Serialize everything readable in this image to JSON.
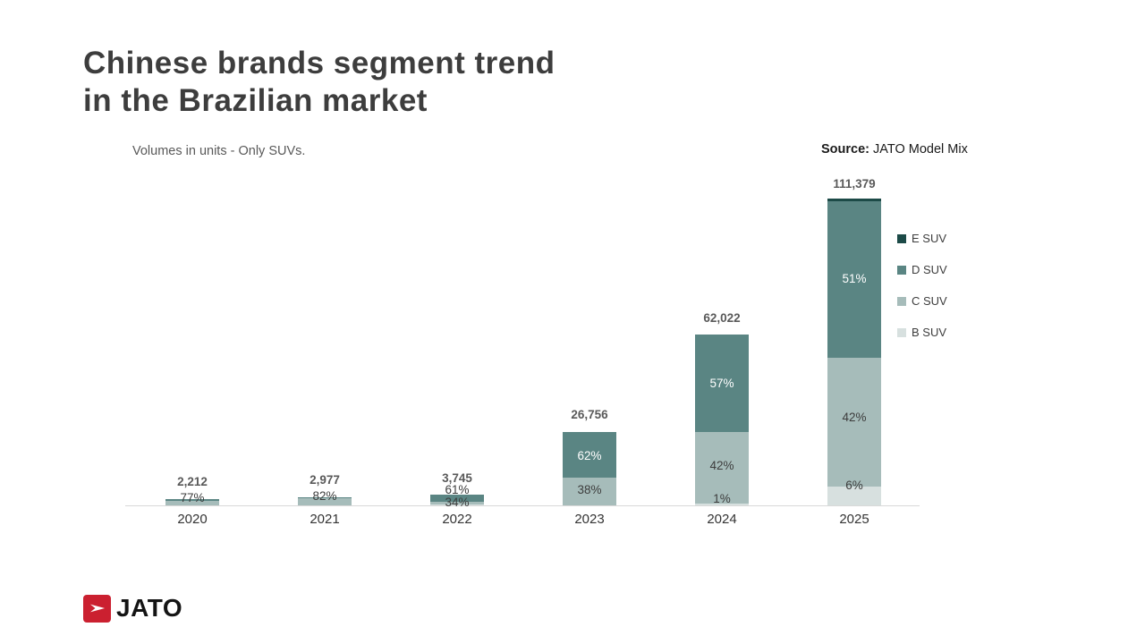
{
  "header": {
    "title_line1": "Chinese brands segment trend",
    "title_line2": "in the Brazilian market",
    "subtitle": "Volumes in units - Only SUVs.",
    "source_label": "Source:",
    "source_text": " JATO Model Mix"
  },
  "legend": {
    "items": [
      {
        "label": "E SUV",
        "color": "#1c4a47"
      },
      {
        "label": "D SUV",
        "color": "#5a8583"
      },
      {
        "label": "C SUV",
        "color": "#a6bcba"
      },
      {
        "label": "B SUV",
        "color": "#d7e0df"
      }
    ]
  },
  "chart_data": {
    "type": "bar",
    "stacked": true,
    "title": "Chinese brands segment trend in the Brazilian market",
    "note": "Volumes in units - Only SUVs.",
    "source": "JATO Model Mix",
    "categories": [
      "2020",
      "2021",
      "2022",
      "2023",
      "2024",
      "2025"
    ],
    "totals": [
      2212,
      2977,
      3745,
      26756,
      62022,
      111379
    ],
    "total_labels": [
      "2,212",
      "2,977",
      "3,745",
      "26,756",
      "62,022",
      "111,379"
    ],
    "ylim": [
      0,
      111379
    ],
    "grid": false,
    "legend_position": "right",
    "segment_colors": {
      "b-suv": "#d7e0df",
      "c-suv": "#a6bcba",
      "d-suv": "#5a8583",
      "e-suv": "#1c4a47"
    },
    "bars": [
      {
        "year": "2020",
        "total": 2212,
        "total_label": "2,212",
        "value_label_offset": 26,
        "segments": [
          {
            "name": "c-suv",
            "pct": 77
          },
          {
            "name": "d-suv",
            "pct": 23
          }
        ],
        "pct_labels": [
          {
            "text": "77%",
            "offset": 8,
            "tone": "dark"
          }
        ]
      },
      {
        "year": "2021",
        "total": 2977,
        "total_label": "2,977",
        "value_label_offset": 28,
        "segments": [
          {
            "name": "c-suv",
            "pct": 82
          },
          {
            "name": "d-suv",
            "pct": 18
          }
        ],
        "pct_labels": [
          {
            "text": "82%",
            "offset": 10,
            "tone": "dark"
          }
        ]
      },
      {
        "year": "2022",
        "total": 3745,
        "total_label": "3,745",
        "value_label_offset": 30,
        "segments": [
          {
            "name": "b-suv",
            "pct": 5
          },
          {
            "name": "c-suv",
            "pct": 34
          },
          {
            "name": "d-suv",
            "pct": 61
          }
        ],
        "pct_labels": [
          {
            "text": "61%",
            "offset": 17,
            "tone": "dark"
          },
          {
            "text": "34%",
            "offset": 3,
            "tone": "dark"
          }
        ]
      },
      {
        "year": "2023",
        "total": 26756,
        "total_label": "26,756",
        "value_label_offset": 101,
        "segments": [
          {
            "name": "c-suv",
            "pct": 38
          },
          {
            "name": "d-suv",
            "pct": 62
          }
        ],
        "pct_labels": [
          {
            "text": "62%",
            "offset": 55,
            "tone": "white"
          },
          {
            "text": "38%",
            "offset": 17,
            "tone": "dark"
          }
        ]
      },
      {
        "year": "2024",
        "total": 62022,
        "total_label": "62,022",
        "value_label_offset": 209,
        "segments": [
          {
            "name": "b-suv",
            "pct": 1
          },
          {
            "name": "c-suv",
            "pct": 42
          },
          {
            "name": "d-suv",
            "pct": 57
          }
        ],
        "pct_labels": [
          {
            "text": "57%",
            "offset": 136,
            "tone": "white"
          },
          {
            "text": "42%",
            "offset": 44,
            "tone": "dark"
          },
          {
            "text": "1%",
            "offset": 7,
            "tone": "dark"
          }
        ]
      },
      {
        "year": "2025",
        "total": 111379,
        "total_label": "111,379",
        "value_label_offset": 359,
        "segments": [
          {
            "name": "b-suv",
            "pct": 6
          },
          {
            "name": "c-suv",
            "pct": 42
          },
          {
            "name": "d-suv",
            "pct": 51
          },
          {
            "name": "e-suv",
            "pct": 1
          }
        ],
        "pct_labels": [
          {
            "text": "51%",
            "offset": 253,
            "tone": "white"
          },
          {
            "text": "42%",
            "offset": 98,
            "tone": "dark"
          },
          {
            "text": "6%",
            "offset": 22,
            "tone": "dark"
          }
        ]
      }
    ]
  },
  "footer": {
    "logo_text": "JATO"
  }
}
